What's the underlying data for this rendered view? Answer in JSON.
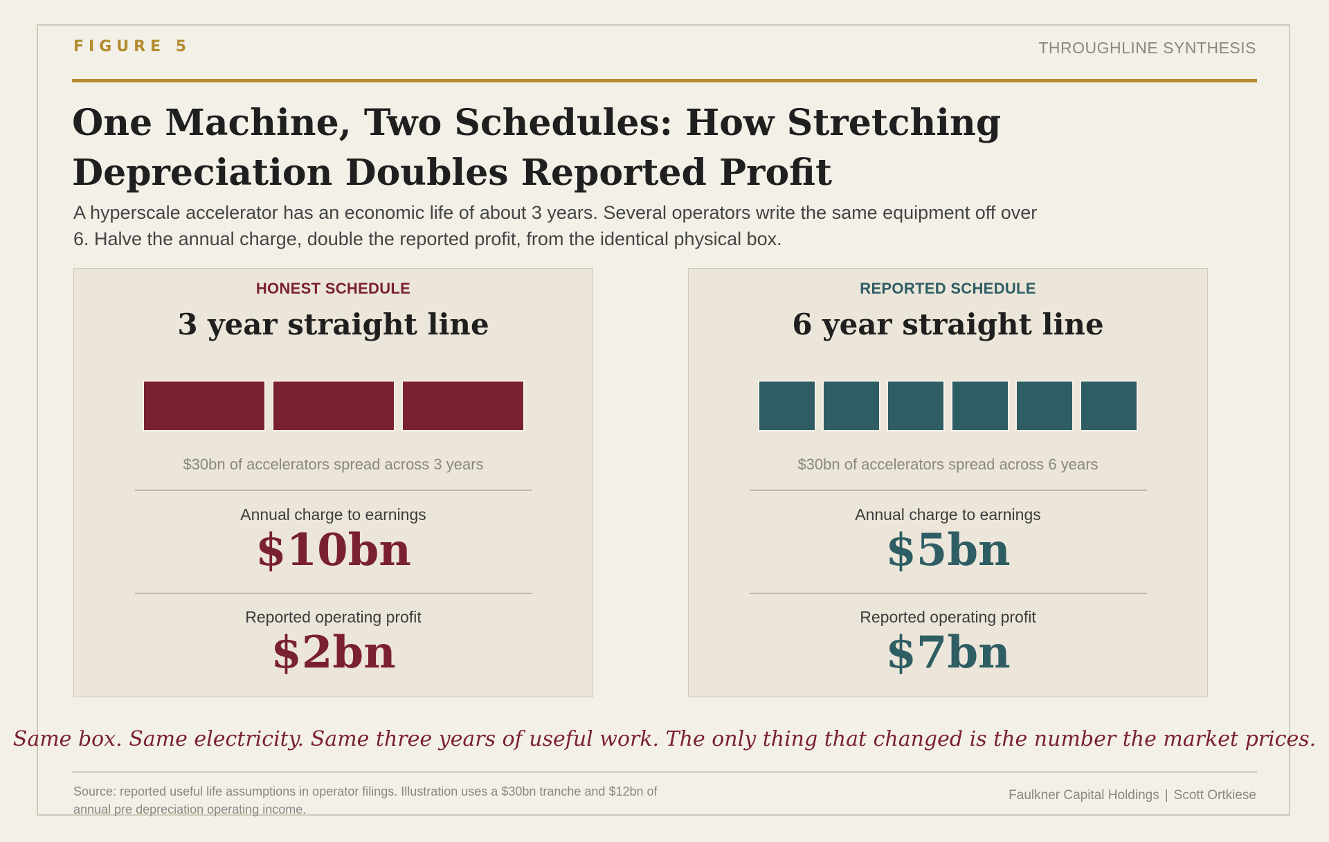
{
  "header": {
    "figure_label": "FIGURE 5",
    "brand": "THROUGHLINE SYNTHESIS",
    "title": "One Machine, Two Schedules: How Stretching Depreciation Doubles Reported Profit",
    "subtitle": "A hyperscale accelerator has an economic life of about 3 years. Several operators write the same equipment off over 6. Halve the annual charge, double the reported profit, from the identical physical box."
  },
  "panels": [
    {
      "schedule_label": "HONEST SCHEDULE",
      "schedule_title": "3 year straight line",
      "years": 3,
      "color": "#7a2130",
      "spread_caption": "$30bn of accelerators spread across 3 years",
      "charge_label": "Annual charge to earnings",
      "charge_value": "$10bn",
      "profit_label": "Reported operating profit",
      "profit_value": "$2bn"
    },
    {
      "schedule_label": "REPORTED SCHEDULE",
      "schedule_title": "6 year straight line",
      "years": 6,
      "color": "#2e5d63",
      "spread_caption": "$30bn of accelerators spread across 6 years",
      "charge_label": "Annual charge to earnings",
      "charge_value": "$5bn",
      "profit_label": "Reported operating profit",
      "profit_value": "$7bn"
    }
  ],
  "tagline": "Same box. Same electricity. Same three years of useful work. The only thing that changed is the number the market prices.",
  "footer": {
    "source": "Source: reported useful life assumptions in operator filings. Illustration uses a $30bn tranche and $12bn of annual pre depreciation operating income.",
    "credit_company": "Faulkner Capital Holdings",
    "credit_separator": "|",
    "credit_author": "Scott Ortkiese"
  },
  "colors": {
    "accent_gold": "#b38b2e",
    "honest": "#7a2130",
    "reported": "#2e5d63",
    "background": "#f3f0e8",
    "panel": "#ece6da"
  }
}
